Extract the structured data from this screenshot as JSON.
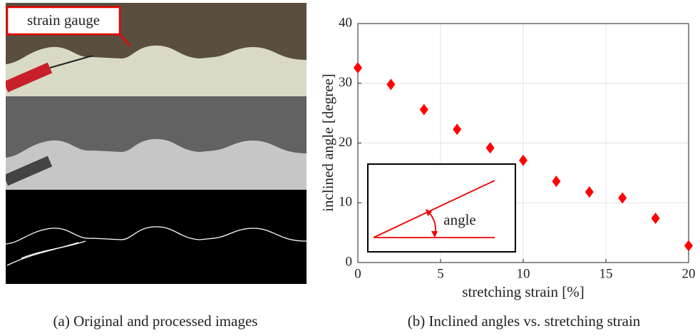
{
  "panel_a": {
    "label": "strain gauge",
    "caption": "(a) Original and processed images"
  },
  "chart_data": {
    "type": "scatter",
    "caption": "(b) Inclined angles vs. stretching strain",
    "x_label": "stretching strain [%]",
    "y_label": "inclined angle [degree]",
    "inset_label": "angle",
    "x": [
      0,
      2,
      4,
      6,
      8,
      10,
      12,
      14,
      16,
      18,
      20
    ],
    "values": [
      32.6,
      29.8,
      25.6,
      22.3,
      19.2,
      17.1,
      13.6,
      11.8,
      10.8,
      7.4,
      2.8
    ],
    "color": "#ff0000",
    "marker": "diamond",
    "xlim": [
      0,
      20
    ],
    "xticks": [
      0,
      5,
      10,
      15,
      20
    ],
    "ylim": [
      0,
      40
    ],
    "yticks": [
      0,
      10,
      20,
      30,
      40
    ],
    "grid": true
  }
}
